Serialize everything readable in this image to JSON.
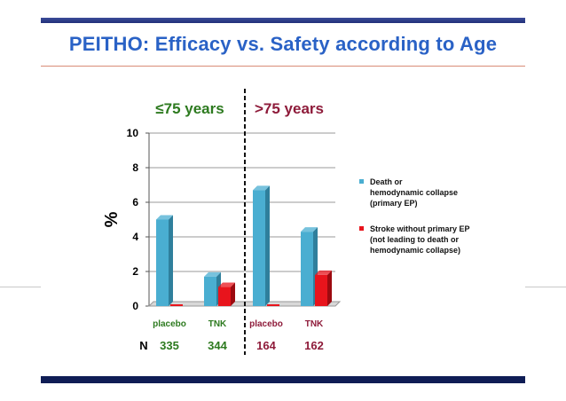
{
  "slide": {
    "title": "PEITHO: Efficacy vs. Safety according to Age"
  },
  "colors": {
    "title": "#2a62c6",
    "series_death": "#4aaed1",
    "series_stroke": "#e8141c",
    "group_young": "#2d7a1f",
    "group_old": "#8e1b3a"
  },
  "chart_data": {
    "type": "bar",
    "groups": [
      {
        "label": "≤75 years",
        "categories": [
          "placebo",
          "TNK"
        ],
        "n": [
          "335",
          "344"
        ]
      },
      {
        "label": ">75 years",
        "categories": [
          "placebo",
          "TNK"
        ],
        "n": [
          "164",
          "162"
        ]
      }
    ],
    "categories": [
      "placebo",
      "TNK",
      "placebo",
      "TNK"
    ],
    "series": [
      {
        "name": "Death or hemodynamic collapse (primary EP)",
        "values": [
          5.0,
          1.7,
          6.7,
          4.3
        ]
      },
      {
        "name": "Stroke without primary EP (not leading to death or hemodynamic collapse)",
        "values": [
          0.0,
          1.1,
          0.0,
          1.8
        ]
      }
    ],
    "ylabel": "%",
    "ylim": [
      0,
      10
    ],
    "yticks": [
      "0",
      "2",
      "4",
      "6",
      "8",
      "10"
    ],
    "n_label": "N",
    "n_values": [
      "335",
      "344",
      "164",
      "162"
    ],
    "grid": true,
    "legend_position": "right",
    "legend": [
      {
        "lines": [
          "Death or",
          "hemodynamic collapse",
          "(primary EP)"
        ]
      },
      {
        "lines": [
          "Stroke without primary EP",
          "(not leading to death or",
          "hemodynamic collapse)"
        ]
      }
    ]
  }
}
